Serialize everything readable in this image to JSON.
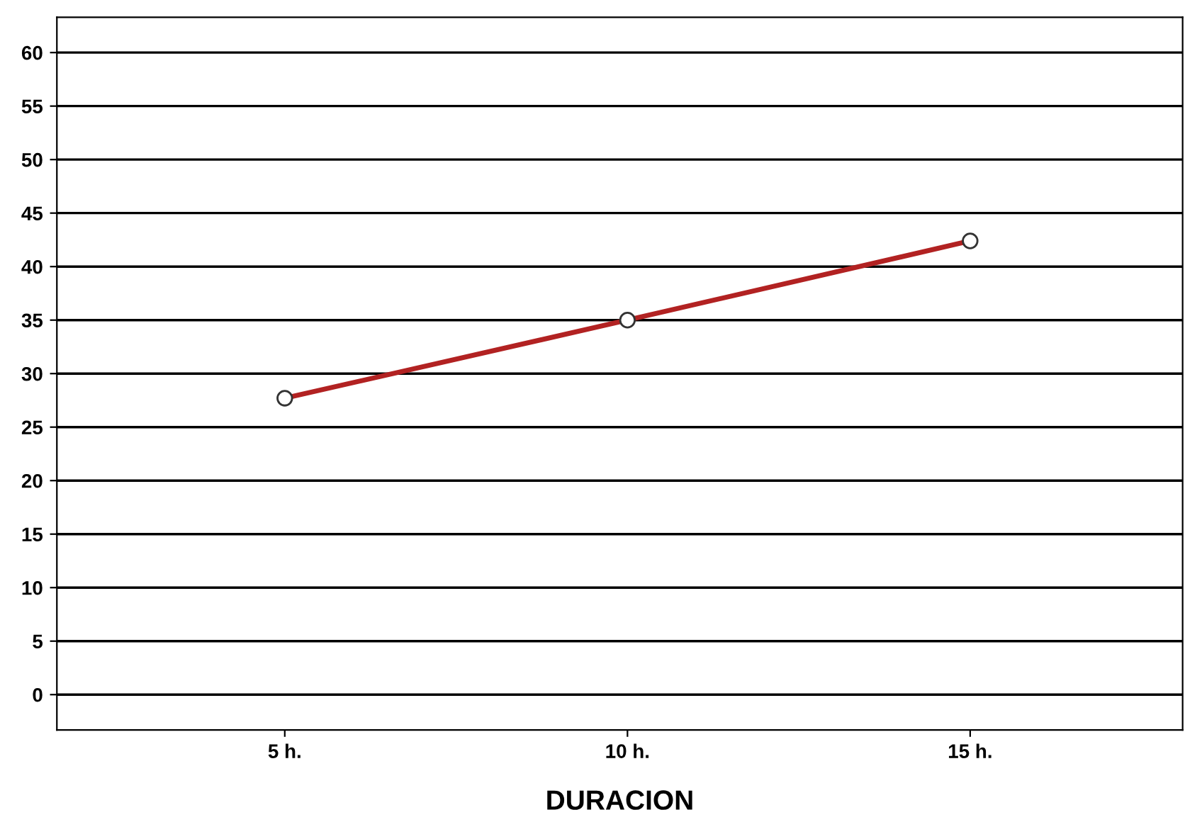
{
  "chart_data": {
    "type": "line",
    "xlabel": "DURACION",
    "categories": [
      "5 h.",
      "10 h.",
      "15 h."
    ],
    "series": [
      {
        "color": "#b22222",
        "values": [
          27.7,
          35.0,
          42.4
        ]
      }
    ],
    "ylim": [
      -3.3,
      63.3
    ],
    "yticks": [
      0,
      5,
      10,
      15,
      20,
      25,
      30,
      35,
      40,
      45,
      50,
      55,
      60
    ],
    "grid": "y",
    "marker": "circle",
    "line_style": "solid",
    "legend": false
  }
}
